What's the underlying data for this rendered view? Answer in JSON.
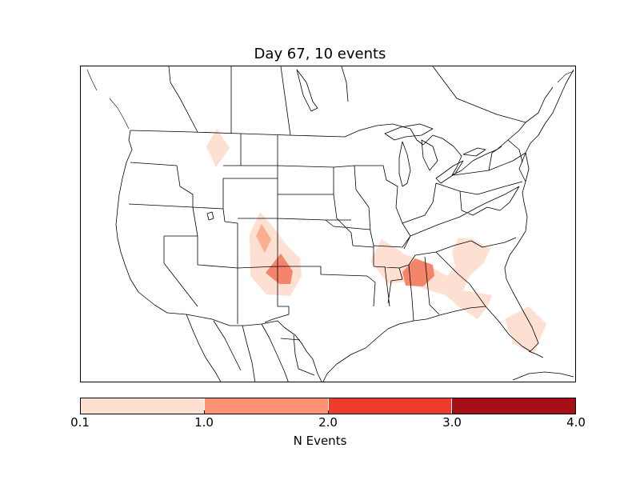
{
  "title": "Day 67, 10 events",
  "colorbar": {
    "label": "N Events",
    "ticks": [
      "0.1",
      "1.0",
      "2.0",
      "3.0",
      "4.0"
    ],
    "colors": [
      "#fee0d2",
      "#fc9272",
      "#ef3b2c",
      "#a50f15"
    ]
  },
  "fill_colors": {
    "low": "#fee0d2",
    "mid": "#fcae91",
    "high": "#f4846a"
  }
}
